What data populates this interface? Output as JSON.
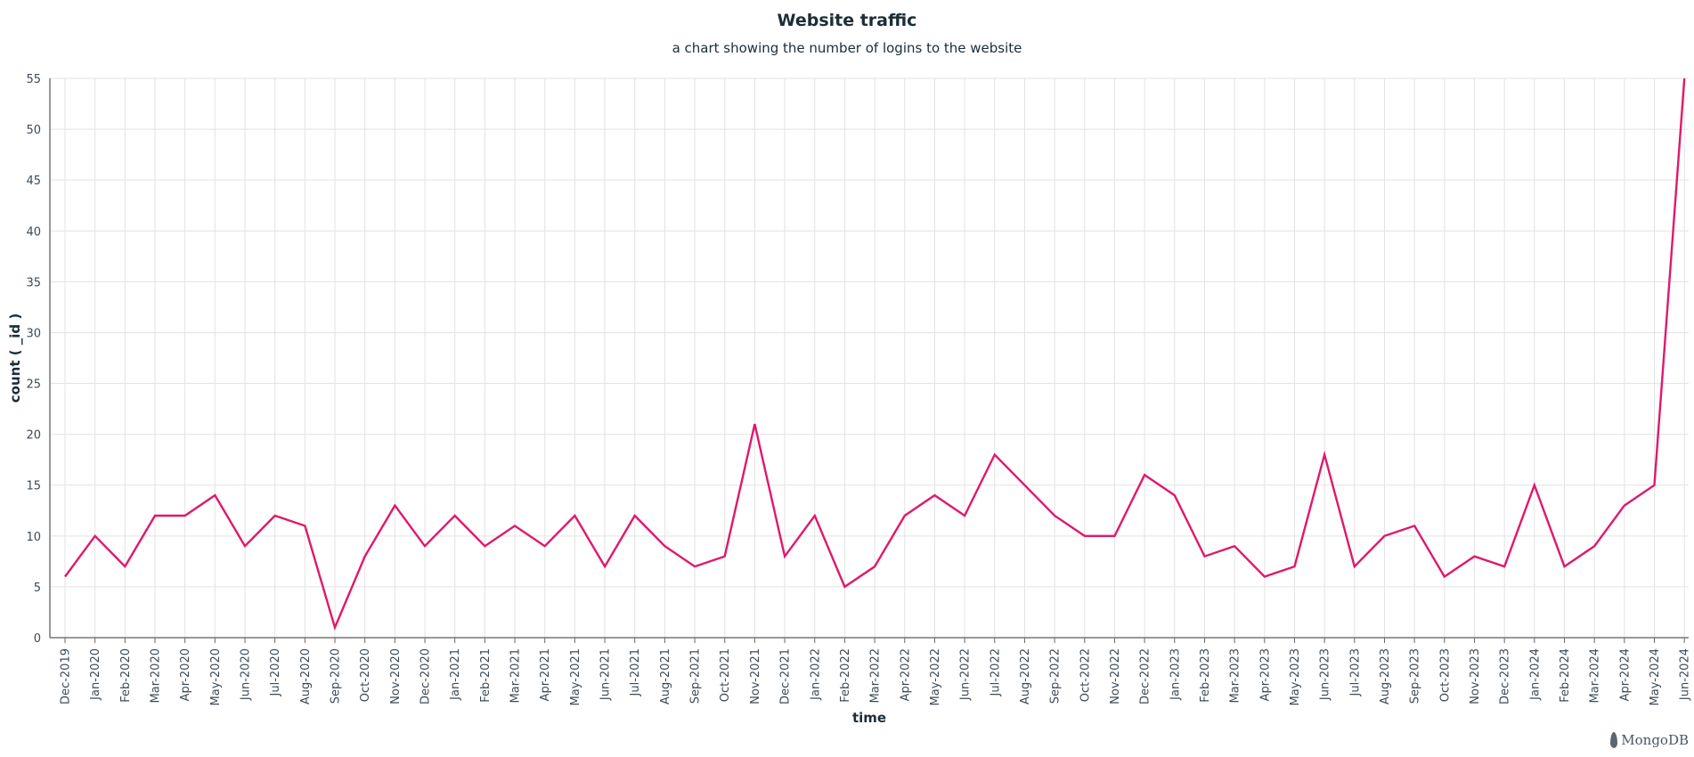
{
  "chart_data": {
    "type": "line",
    "title": "Website traffic",
    "subtitle": "a chart showing the number of logins to the website",
    "xlabel": "time",
    "ylabel": "count ( _id )",
    "ylim": [
      0,
      55
    ],
    "yticks": [
      0,
      5,
      10,
      15,
      20,
      25,
      30,
      35,
      40,
      45,
      50,
      55
    ],
    "grid": true,
    "line_color": "#e0186c",
    "categories": [
      "Dec-2019",
      "Jan-2020",
      "Feb-2020",
      "Mar-2020",
      "Apr-2020",
      "May-2020",
      "Jun-2020",
      "Jul-2020",
      "Aug-2020",
      "Sep-2020",
      "Oct-2020",
      "Nov-2020",
      "Dec-2020",
      "Jan-2021",
      "Feb-2021",
      "Mar-2021",
      "Apr-2021",
      "May-2021",
      "Jun-2021",
      "Jul-2021",
      "Aug-2021",
      "Sep-2021",
      "Oct-2021",
      "Nov-2021",
      "Dec-2021",
      "Jan-2022",
      "Feb-2022",
      "Mar-2022",
      "Apr-2022",
      "May-2022",
      "Jun-2022",
      "Jul-2022",
      "Aug-2022",
      "Sep-2022",
      "Oct-2022",
      "Nov-2022",
      "Dec-2022",
      "Jan-2023",
      "Feb-2023",
      "Mar-2023",
      "Apr-2023",
      "May-2023",
      "Jun-2023",
      "Jul-2023",
      "Aug-2023",
      "Sep-2023",
      "Oct-2023",
      "Nov-2023",
      "Dec-2023",
      "Jan-2024",
      "Feb-2024",
      "Mar-2024",
      "Apr-2024",
      "May-2024",
      "Jun-2024"
    ],
    "values": [
      6,
      10,
      7,
      12,
      12,
      14,
      9,
      12,
      11,
      1,
      8,
      13,
      9,
      12,
      9,
      11,
      9,
      12,
      7,
      12,
      9,
      7,
      8,
      21,
      8,
      12,
      5,
      7,
      12,
      14,
      12,
      18,
      15,
      12,
      10,
      10,
      16,
      14,
      8,
      9,
      6,
      7,
      18,
      7,
      10,
      11,
      6,
      8,
      7,
      15,
      7,
      9,
      13,
      15,
      55
    ]
  },
  "branding": {
    "logo_text": "MongoDB"
  }
}
